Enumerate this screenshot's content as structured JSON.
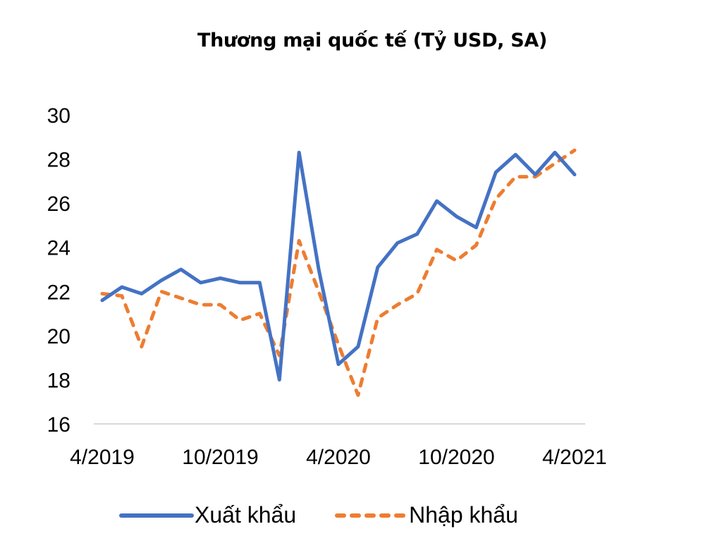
{
  "chart_data": {
    "type": "line",
    "title": "Thương mại quốc tế (Tỷ USD, SA)",
    "xlabel": "",
    "ylabel": "",
    "ylim": [
      16,
      30
    ],
    "yticks": [
      "16",
      "18",
      "20",
      "22",
      "24",
      "26",
      "28",
      "30"
    ],
    "grid": false,
    "legend_position": "bottom",
    "x_tick_labels": [
      "4/2019",
      "10/2019",
      "4/2020",
      "10/2020",
      "4/2021"
    ],
    "x": [
      "4/2019",
      "5/2019",
      "6/2019",
      "7/2019",
      "8/2019",
      "9/2019",
      "10/2019",
      "11/2019",
      "12/2019",
      "1/2020",
      "2/2020",
      "3/2020",
      "4/2020",
      "5/2020",
      "6/2020",
      "7/2020",
      "8/2020",
      "9/2020",
      "10/2020",
      "11/2020",
      "12/2020",
      "1/2021",
      "2/2021",
      "3/2021",
      "4/2021"
    ],
    "series": [
      {
        "name": "Xuất khẩu",
        "color": "#4472C4",
        "style": "solid",
        "values": [
          21.6,
          22.2,
          21.9,
          22.5,
          23.0,
          22.4,
          22.6,
          22.4,
          22.4,
          18.0,
          28.3,
          23.0,
          18.7,
          19.5,
          23.1,
          24.2,
          24.6,
          26.1,
          25.4,
          24.9,
          27.4,
          28.2,
          27.3,
          28.3,
          27.3
        ]
      },
      {
        "name": "Nhập khẩu",
        "color": "#ED7D31",
        "style": "dashed",
        "values": [
          21.9,
          21.8,
          19.5,
          22.0,
          21.7,
          21.4,
          21.4,
          20.7,
          21.0,
          19.1,
          24.3,
          22.0,
          19.6,
          17.3,
          20.8,
          21.4,
          21.9,
          23.9,
          23.4,
          24.1,
          26.2,
          27.2,
          27.2,
          27.8,
          28.4
        ]
      }
    ]
  },
  "legend": {
    "items": [
      {
        "label": "Xuất khẩu",
        "color": "#4472C4"
      },
      {
        "label": "Nhập khẩu",
        "color": "#ED7D31"
      }
    ]
  }
}
